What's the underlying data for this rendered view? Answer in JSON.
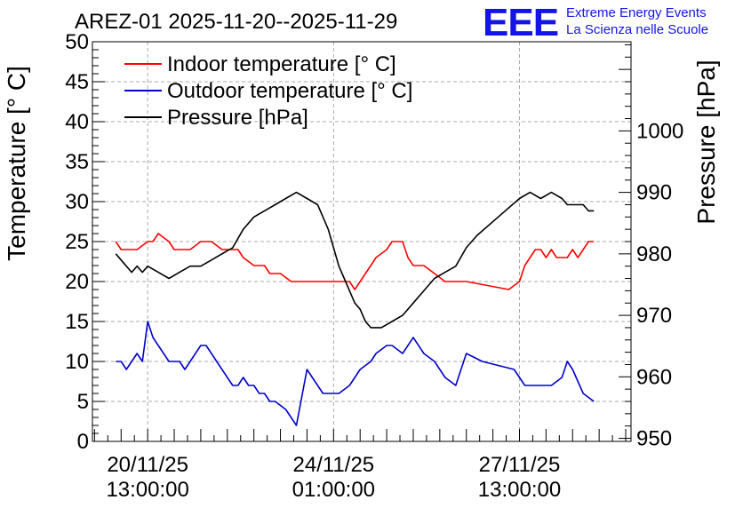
{
  "chart_data": {
    "type": "line",
    "title": "AREZ-01 2025-11-20--2025-11-29",
    "ylabel": "Temperature [° C]",
    "y2label": "Pressure [hPa]",
    "ylim": [
      0,
      50
    ],
    "y2lim": [
      949.5,
      1014.5
    ],
    "x_range": [
      -1.04,
      9.1
    ],
    "yticks": [
      "0",
      "5",
      "10",
      "15",
      "20",
      "25",
      "30",
      "35",
      "40",
      "45",
      "50"
    ],
    "y2ticks": [
      "950",
      "960",
      "970",
      "980",
      "990",
      "1000"
    ],
    "xticks": [
      {
        "x": 0,
        "line1": "20/11/25",
        "line2": "13:00:00"
      },
      {
        "x": 3.5,
        "line1": "24/11/25",
        "line2": "01:00:00"
      },
      {
        "x": 7,
        "line1": "27/11/25",
        "line2": "13:00:00"
      }
    ],
    "grid": true,
    "legend_position": "top-left",
    "logo": {
      "text": "EEE",
      "line1": "Extreme Energy Events",
      "line2": "La Scienza nelle Scuole"
    },
    "series": [
      {
        "name": "Indoor temperature [° C]",
        "color": "#ff0000",
        "axis": "left",
        "x": [
          -0.6,
          -0.5,
          -0.4,
          -0.2,
          0,
          0.1,
          0.2,
          0.4,
          0.5,
          0.7,
          0.8,
          1.0,
          1.2,
          1.4,
          1.5,
          1.6,
          1.7,
          1.8,
          2.0,
          2.2,
          2.3,
          2.5,
          2.7,
          3.0,
          3.2,
          3.3,
          3.4,
          3.6,
          3.8,
          3.9,
          4.0,
          4.1,
          4.2,
          4.3,
          4.5,
          4.6,
          4.8,
          4.9,
          5.0,
          5.2,
          5.4,
          5.6,
          5.8,
          6.0,
          6.4,
          6.8,
          7.0,
          7.1,
          7.2,
          7.3,
          7.4,
          7.5,
          7.6,
          7.7,
          7.8,
          7.9,
          8.0,
          8.1,
          8.2,
          8.3,
          8.4
        ],
        "y": [
          25,
          24,
          24,
          24,
          25,
          25,
          26,
          25,
          24,
          24,
          24,
          25,
          25,
          24,
          24,
          24,
          24,
          23,
          22,
          22,
          21,
          21,
          20,
          20,
          20,
          20,
          20,
          20,
          20,
          19,
          20,
          21,
          22,
          23,
          24,
          25,
          25,
          23,
          22,
          22,
          21,
          20,
          20,
          20,
          19.5,
          19,
          20,
          22,
          23,
          24,
          24,
          23,
          24,
          23,
          23,
          23,
          24,
          23,
          24,
          25,
          25
        ]
      },
      {
        "name": "Outdoor temperature [° C]",
        "color": "#0000cc",
        "axis": "left",
        "x": [
          -0.6,
          -0.5,
          -0.4,
          -0.3,
          -0.2,
          -0.1,
          0,
          0.1,
          0.2,
          0.3,
          0.4,
          0.5,
          0.6,
          0.7,
          0.8,
          0.9,
          1.0,
          1.1,
          1.2,
          1.3,
          1.4,
          1.5,
          1.6,
          1.7,
          1.8,
          1.9,
          2.0,
          2.1,
          2.2,
          2.3,
          2.4,
          2.6,
          2.8,
          3.0,
          3.2,
          3.3,
          3.4,
          3.6,
          3.8,
          4.0,
          4.2,
          4.3,
          4.5,
          4.6,
          4.8,
          5.0,
          5.2,
          5.4,
          5.6,
          5.8,
          6.0,
          6.3,
          6.6,
          6.9,
          7.0,
          7.1,
          7.2,
          7.4,
          7.6,
          7.8,
          7.9,
          8.0,
          8.2,
          8.4
        ],
        "y": [
          10,
          10,
          9,
          10,
          11,
          10,
          15,
          13,
          12,
          11,
          10,
          10,
          10,
          9,
          10,
          11,
          12,
          12,
          11,
          10,
          9,
          8,
          7,
          7,
          8,
          7,
          7,
          6,
          6,
          5,
          5,
          4,
          2,
          9,
          7,
          6,
          6,
          6,
          7,
          9,
          10,
          11,
          12,
          12,
          11,
          13,
          11,
          10,
          8,
          7,
          11,
          10,
          9.5,
          9,
          8,
          7,
          7,
          7,
          7,
          8,
          10,
          9,
          6,
          5
        ]
      },
      {
        "name": "Pressure [hPa]",
        "color": "#000000",
        "axis": "right",
        "x": [
          -0.6,
          -0.5,
          -0.4,
          -0.3,
          -0.2,
          -0.1,
          0,
          0.2,
          0.4,
          0.6,
          0.8,
          1.0,
          1.2,
          1.4,
          1.6,
          1.8,
          2.0,
          2.2,
          2.4,
          2.6,
          2.8,
          3.0,
          3.2,
          3.3,
          3.4,
          3.5,
          3.6,
          3.7,
          3.8,
          3.9,
          4.0,
          4.1,
          4.2,
          4.4,
          4.6,
          4.8,
          5.0,
          5.2,
          5.4,
          5.6,
          5.8,
          6.0,
          6.2,
          6.6,
          7.0,
          7.2,
          7.4,
          7.6,
          7.8,
          7.9,
          8.0,
          8.1,
          8.2,
          8.3,
          8.4
        ],
        "y": [
          980,
          979,
          978,
          977,
          978,
          977,
          978,
          977,
          976,
          977,
          978,
          978,
          979,
          980,
          981,
          984,
          986,
          987,
          988,
          989,
          990,
          989,
          988,
          986,
          984,
          981,
          978,
          976,
          974,
          972,
          971,
          969,
          968,
          968,
          969,
          970,
          972,
          974,
          976,
          977,
          978,
          981,
          983,
          986,
          989,
          990,
          989,
          990,
          989,
          988,
          988,
          988,
          988,
          987,
          987
        ]
      }
    ]
  }
}
